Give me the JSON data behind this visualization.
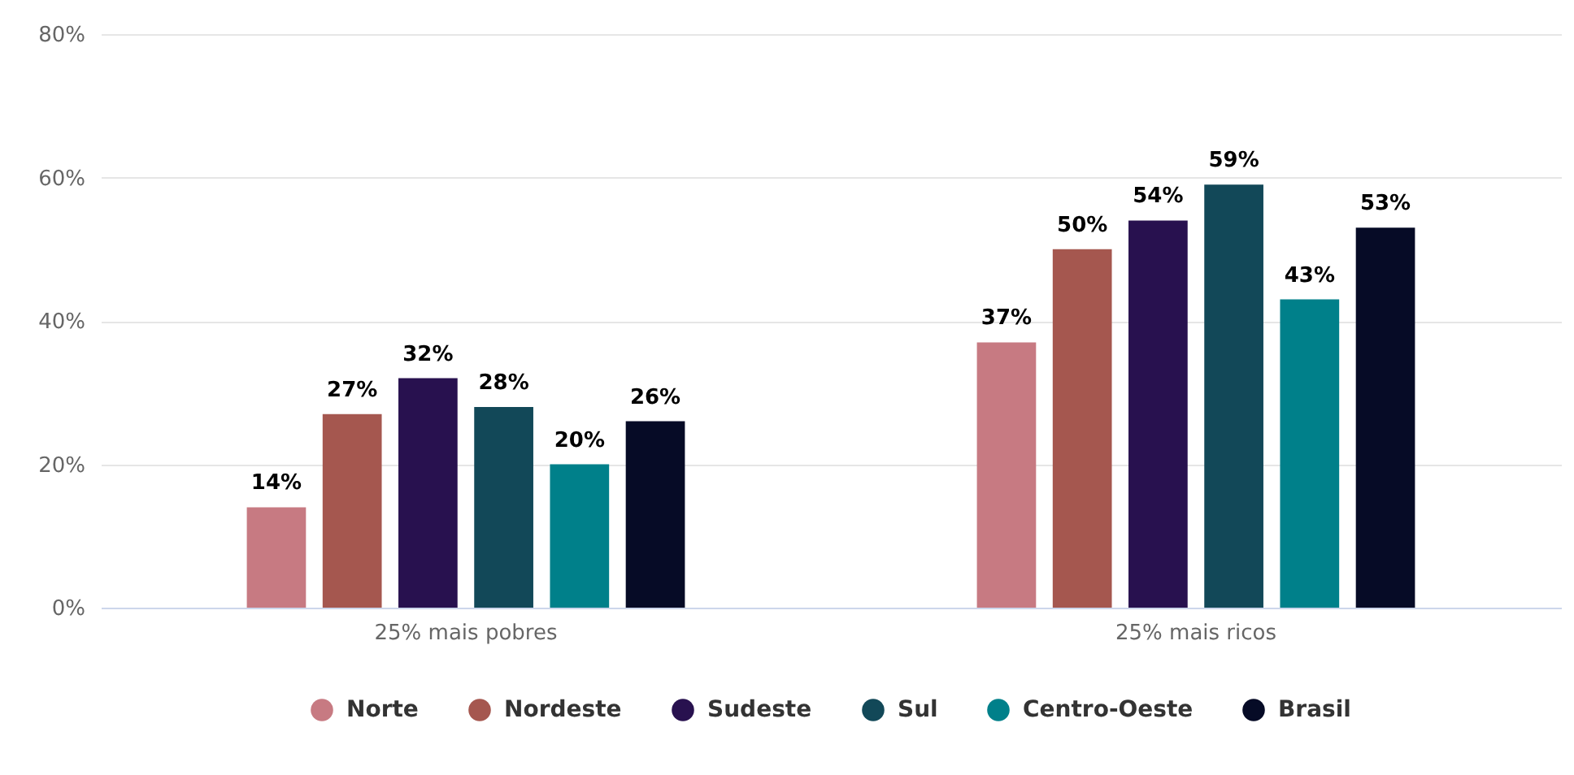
{
  "chart_data": {
    "type": "bar",
    "categories": [
      "25% mais pobres",
      "25% mais ricos"
    ],
    "series": [
      {
        "name": "Norte",
        "color": "#c77a82",
        "values": [
          14,
          37
        ],
        "value_labels": [
          "14%",
          "37%"
        ]
      },
      {
        "name": "Nordeste",
        "color": "#a5574f",
        "values": [
          27,
          50
        ],
        "value_labels": [
          "27%",
          "50%"
        ]
      },
      {
        "name": "Sudeste",
        "color": "#28114f",
        "values": [
          32,
          54
        ],
        "value_labels": [
          "32%",
          "54%"
        ]
      },
      {
        "name": "Sul",
        "color": "#124858",
        "values": [
          28,
          59
        ],
        "value_labels": [
          "28%",
          "59%"
        ]
      },
      {
        "name": "Centro-Oeste",
        "color": "#00808a",
        "values": [
          20,
          43
        ],
        "value_labels": [
          "20%",
          "43%"
        ]
      },
      {
        "name": "Brasil",
        "color": "#060b26",
        "values": [
          26,
          53
        ],
        "value_labels": [
          "26%",
          "53%"
        ]
      }
    ],
    "ylim": [
      0,
      80
    ],
    "yticks": [
      {
        "value": 0,
        "label": "0%"
      },
      {
        "value": 20,
        "label": "20%"
      },
      {
        "value": 40,
        "label": "40%"
      },
      {
        "value": 60,
        "label": "60%"
      },
      {
        "value": 80,
        "label": "80%"
      }
    ],
    "grid": "y",
    "legend": "bottom"
  }
}
